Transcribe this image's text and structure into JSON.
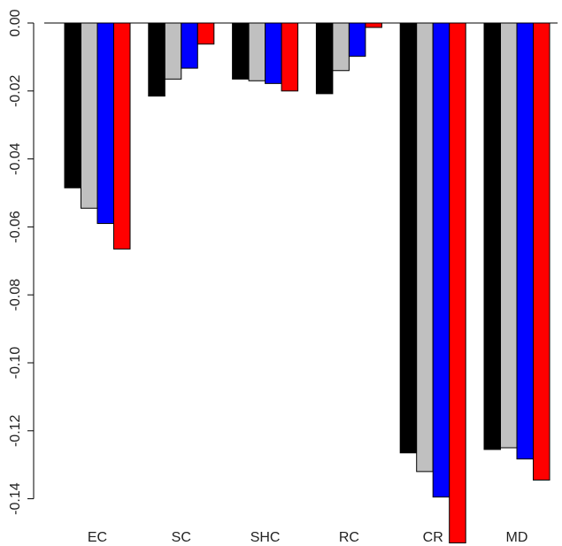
{
  "chart_data": {
    "type": "bar",
    "title": "",
    "xlabel": "",
    "ylabel": "",
    "categories": [
      "EC",
      "SC",
      "SHC",
      "RC",
      "CR",
      "MD"
    ],
    "ylim": [
      -0.155,
      0.0
    ],
    "yticks": [
      0.0,
      -0.02,
      -0.04,
      -0.06,
      -0.08,
      -0.1,
      -0.12,
      -0.14
    ],
    "ytick_labels": [
      "0.00",
      "-0.02",
      "-0.04",
      "-0.06",
      "-0.08",
      "-0.10",
      "-0.12",
      "-0.14"
    ],
    "grid": false,
    "legend": "none",
    "series": [
      {
        "color": "#000000",
        "values": [
          -0.0485,
          -0.0215,
          -0.0165,
          -0.0208,
          -0.1265,
          -0.1255
        ]
      },
      {
        "color": "#c0c0c0",
        "values": [
          -0.0545,
          -0.0165,
          -0.017,
          -0.014,
          -0.132,
          -0.125
        ]
      },
      {
        "color": "#0000ff",
        "values": [
          -0.059,
          -0.0133,
          -0.0178,
          -0.0098,
          -0.1395,
          -0.1283
        ]
      },
      {
        "color": "#ff0000",
        "values": [
          -0.0665,
          -0.0062,
          -0.02,
          -0.0013,
          -0.153,
          -0.1345
        ]
      }
    ]
  }
}
